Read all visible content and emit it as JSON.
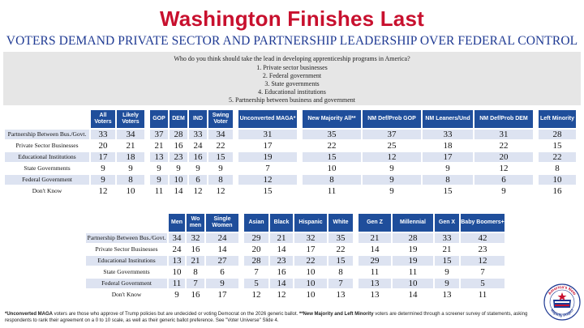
{
  "title": "Washington Finishes Last",
  "subtitle": "VOTERS DEMAND PRIVATE SECTOR AND PARTNERSHIP LEADERSHIP OVER FEDERAL CONTROL",
  "question": {
    "text": "Who do you think should take the lead in developing apprenticeship programs in America?",
    "options": [
      "1. Private sector businesses",
      "2. Federal government",
      "3. State governments",
      "4. Educational institutions",
      "5. Partnership between business and government"
    ]
  },
  "table1": {
    "headers": [
      "All Voters",
      "Likely Voters",
      "GOP",
      "DEM",
      "IND",
      "Swing Voter",
      "Unconverted MAGA*",
      "New Majority All**",
      "NM Def/Prob GOP",
      "NM Leaners/Und",
      "NM Def/Prob DEM",
      "Left Minority"
    ],
    "rows": [
      {
        "label": "Partnership Between Bus./Govt.",
        "values": [
          "33",
          "34",
          "37",
          "28",
          "33",
          "34",
          "31",
          "35",
          "37",
          "33",
          "31",
          "28"
        ]
      },
      {
        "label": "Private Sector Businesses",
        "values": [
          "20",
          "21",
          "21",
          "16",
          "24",
          "22",
          "17",
          "22",
          "25",
          "18",
          "22",
          "15"
        ]
      },
      {
        "label": "Educational Institutions",
        "values": [
          "17",
          "18",
          "13",
          "23",
          "16",
          "15",
          "19",
          "15",
          "12",
          "17",
          "20",
          "22"
        ]
      },
      {
        "label": "State Governments",
        "values": [
          "9",
          "9",
          "9",
          "9",
          "9",
          "9",
          "7",
          "10",
          "9",
          "9",
          "12",
          "8"
        ]
      },
      {
        "label": "Federal Government",
        "values": [
          "9",
          "8",
          "9",
          "10",
          "6",
          "8",
          "12",
          "8",
          "9",
          "8",
          "6",
          "10"
        ]
      },
      {
        "label": "Don't Know",
        "values": [
          "12",
          "10",
          "11",
          "14",
          "12",
          "12",
          "15",
          "11",
          "9",
          "15",
          "9",
          "16"
        ]
      }
    ]
  },
  "table2": {
    "headers": [
      "Men",
      "Wo men",
      "Single Women",
      "Asian",
      "Black",
      "Hispanic",
      "White",
      "Gen Z",
      "Millennial",
      "Gen X",
      "Baby Boomers+"
    ],
    "rows": [
      {
        "label": "Partnership Between Bus./Govt.",
        "values": [
          "34",
          "32",
          "24",
          "29",
          "21",
          "32",
          "35",
          "21",
          "28",
          "33",
          "42"
        ]
      },
      {
        "label": "Private Sector Businesses",
        "values": [
          "24",
          "16",
          "14",
          "20",
          "14",
          "17",
          "22",
          "14",
          "19",
          "21",
          "23"
        ]
      },
      {
        "label": "Educational Institutions",
        "values": [
          "13",
          "21",
          "27",
          "28",
          "23",
          "22",
          "15",
          "29",
          "19",
          "15",
          "12"
        ]
      },
      {
        "label": "State Governments",
        "values": [
          "10",
          "8",
          "6",
          "7",
          "16",
          "10",
          "8",
          "11",
          "11",
          "9",
          "7"
        ]
      },
      {
        "label": "Federal Government",
        "values": [
          "11",
          "7",
          "9",
          "5",
          "14",
          "10",
          "7",
          "13",
          "10",
          "9",
          "5"
        ]
      },
      {
        "label": "Don't Know",
        "values": [
          "9",
          "16",
          "17",
          "12",
          "12",
          "10",
          "13",
          "13",
          "14",
          "13",
          "11"
        ]
      }
    ]
  },
  "footnote": {
    "part1": "*Unconverted MAGA",
    "part2": " voters are those who approve of Trump policies but are undecided or voting Democrat on the 2026 generic ballot. ",
    "part3": "**New Majority and Left Minority",
    "part4": " voters are determined through a screener survey of statements, asking respondents to rank their agreement on a 0 to 10 scale, as well as their generic ballot preference. See \"Voter Universe\" Slide 4."
  },
  "logo": {
    "text_top": "America's New",
    "text_bottom": "Majority Project"
  },
  "colors": {
    "title": "#c8102e",
    "subtitle": "#1f3a93",
    "header": "#1f4e9b",
    "shade": "#dde3f1"
  }
}
